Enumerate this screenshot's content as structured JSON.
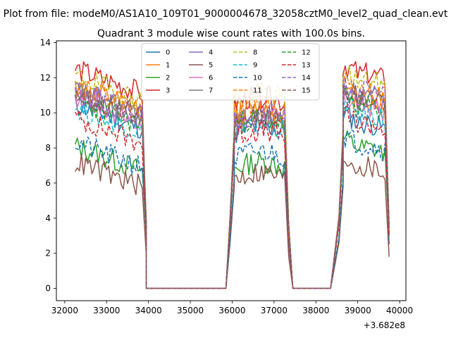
{
  "chart_data": {
    "type": "line",
    "suptitle": "Plot from file: modeM0/AS1A10_109T01_9000004678_32058cztM0_level2_quad_clean.evt",
    "title": "Quadrant 3 module wise count rates with 100.0s bins.",
    "xlabel": "",
    "ylabel": "",
    "x_offset_label": "+3.682e8",
    "xlim": [
      31800,
      40150
    ],
    "ylim": [
      -0.7,
      14.1
    ],
    "x_ticks": [
      32000,
      33000,
      34000,
      35000,
      36000,
      37000,
      38000,
      39000,
      40000
    ],
    "x_tick_labels": [
      "32000",
      "33000",
      "34000",
      "35000",
      "36000",
      "37000",
      "38000",
      "39000",
      "40000"
    ],
    "y_ticks": [
      0,
      2,
      4,
      6,
      8,
      10,
      12,
      14
    ],
    "y_tick_labels": [
      "0",
      "2",
      "4",
      "6",
      "8",
      "10",
      "12",
      "14"
    ],
    "grid": false,
    "legend_position": "upper-center",
    "legend_columns": 4,
    "segments": [
      {
        "start": 32250,
        "end": 33850,
        "end_drop_x": 33950
      },
      {
        "start": 36050,
        "end": 37250,
        "end_drop_x": 37350
      },
      {
        "start": 38650,
        "end": 39650,
        "end_drop_x": 39750
      }
    ],
    "zero_gaps": [
      {
        "from": 33950,
        "to": 35850,
        "ramp_end": 36050
      },
      {
        "from": 37450,
        "to": 38350,
        "ramp_end": 38650
      }
    ],
    "series": [
      {
        "name": "0",
        "color": "#1f77b4",
        "dash": "solid",
        "base": [
          9.6,
          8.8,
          9.0
        ],
        "ramp_end_value": 6.0,
        "drop_value": 2.5,
        "seed": 11
      },
      {
        "name": "1",
        "color": "#ff7f0e",
        "dash": "solid",
        "base": [
          10.6,
          9.8,
          10.2
        ],
        "ramp_end_value": 8.8,
        "drop_value": 3.0,
        "seed": 12
      },
      {
        "name": "2",
        "color": "#2ca02c",
        "dash": "solid",
        "base": [
          7.2,
          6.8,
          7.6
        ],
        "ramp_end_value": 6.2,
        "drop_value": 3.0,
        "seed": 13
      },
      {
        "name": "3",
        "color": "#d62728",
        "dash": "solid",
        "base": [
          11.6,
          10.5,
          11.8
        ],
        "ramp_end_value": 9.0,
        "drop_value": 3.4,
        "seed": 14
      },
      {
        "name": "4",
        "color": "#9467bd",
        "dash": "solid",
        "base": [
          10.3,
          9.3,
          10.4
        ],
        "ramp_end_value": 8.6,
        "drop_value": 3.0,
        "seed": 15
      },
      {
        "name": "5",
        "color": "#8c564b",
        "dash": "solid",
        "base": [
          6.3,
          6.2,
          6.5
        ],
        "ramp_end_value": 5.8,
        "drop_value": 1.8,
        "seed": 16
      },
      {
        "name": "6",
        "color": "#e377c2",
        "dash": "solid",
        "base": [
          10.0,
          9.4,
          10.0
        ],
        "ramp_end_value": 8.4,
        "drop_value": 3.2,
        "seed": 17
      },
      {
        "name": "7",
        "color": "#7f7f7f",
        "dash": "solid",
        "base": [
          10.4,
          9.2,
          10.5
        ],
        "ramp_end_value": 8.7,
        "drop_value": 3.2,
        "seed": 18
      },
      {
        "name": "8",
        "color": "#bcbd22",
        "dash": "dashed",
        "base": [
          11.2,
          10.8,
          11.4
        ],
        "ramp_end_value": 9.4,
        "drop_value": 3.8,
        "seed": 19
      },
      {
        "name": "9",
        "color": "#17becf",
        "dash": "dashed",
        "base": [
          9.4,
          8.9,
          9.6
        ],
        "ramp_end_value": 8.2,
        "drop_value": 3.4,
        "seed": 20
      },
      {
        "name": "10",
        "color": "#1f77b4",
        "dash": "dashed",
        "base": [
          7.4,
          7.4,
          7.8
        ],
        "ramp_end_value": 6.4,
        "drop_value": 3.0,
        "seed": 21
      },
      {
        "name": "11",
        "color": "#ff7f0e",
        "dash": "dashed",
        "base": [
          10.8,
          10.0,
          10.8
        ],
        "ramp_end_value": 9.0,
        "drop_value": 3.2,
        "seed": 22
      },
      {
        "name": "12",
        "color": "#2ca02c",
        "dash": "dashed",
        "base": [
          9.8,
          9.3,
          10.0
        ],
        "ramp_end_value": 8.8,
        "drop_value": 3.6,
        "seed": 23
      },
      {
        "name": "13",
        "color": "#d62728",
        "dash": "dashed",
        "base": [
          8.8,
          8.6,
          9.0
        ],
        "ramp_end_value": 8.0,
        "drop_value": 3.0,
        "seed": 24
      },
      {
        "name": "14",
        "color": "#9467bd",
        "dash": "dashed",
        "base": [
          10.4,
          9.6,
          10.8
        ],
        "ramp_end_value": 9.0,
        "drop_value": 3.4,
        "seed": 25
      },
      {
        "name": "15",
        "color": "#8c564b",
        "dash": "dashed",
        "base": [
          10.2,
          9.4,
          10.4
        ],
        "ramp_end_value": 8.6,
        "drop_value": 3.6,
        "seed": 26
      }
    ]
  }
}
